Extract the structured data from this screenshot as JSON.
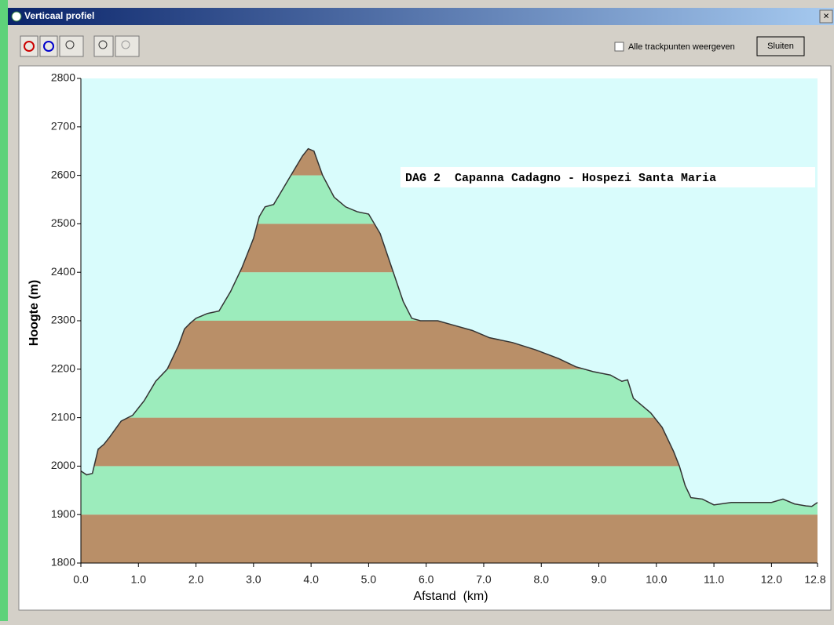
{
  "window": {
    "title": "Verticaal profiel",
    "checkbox_label": "Alle trackpunten weergeven",
    "button_label": "Sluiten"
  },
  "chart_data": {
    "type": "banded-area",
    "annotation": "DAG 2  Capanna Cadagno - Hospezi Santa Maria",
    "xlabel": "Afstand  (km)",
    "ylabel": "Hoogte (m)",
    "x": [
      0,
      0.1,
      0.2,
      0.3,
      0.4,
      0.5,
      0.7,
      0.9,
      1.1,
      1.3,
      1.5,
      1.7,
      1.8,
      1.9,
      2.0,
      2.2,
      2.4,
      2.6,
      2.8,
      2.9,
      3.0,
      3.1,
      3.2,
      3.35,
      3.5,
      3.7,
      3.85,
      3.95,
      4.05,
      4.2,
      4.4,
      4.6,
      4.8,
      5.0,
      5.2,
      5.4,
      5.6,
      5.75,
      5.9,
      6.2,
      6.5,
      6.8,
      7.1,
      7.5,
      7.9,
      8.3,
      8.6,
      8.9,
      9.2,
      9.4,
      9.5,
      9.6,
      9.9,
      10.1,
      10.3,
      10.4,
      10.5,
      10.6,
      10.8,
      11.0,
      11.3,
      11.6,
      12.0,
      12.2,
      12.4,
      12.6,
      12.7,
      12.8
    ],
    "values": [
      1990,
      1982,
      1985,
      2035,
      2045,
      2060,
      2093,
      2105,
      2135,
      2175,
      2200,
      2250,
      2283,
      2295,
      2305,
      2315,
      2320,
      2360,
      2410,
      2440,
      2470,
      2515,
      2535,
      2540,
      2570,
      2610,
      2640,
      2655,
      2650,
      2600,
      2555,
      2535,
      2525,
      2520,
      2480,
      2410,
      2340,
      2305,
      2300,
      2300,
      2290,
      2280,
      2265,
      2255,
      2240,
      2222,
      2205,
      2195,
      2188,
      2175,
      2178,
      2140,
      2110,
      2080,
      2030,
      2000,
      1960,
      1935,
      1932,
      1920,
      1925,
      1925,
      1925,
      1932,
      1922,
      1918,
      1917,
      1925
    ],
    "xlim": [
      0,
      12.8
    ],
    "xticks": [
      {
        "value": 0,
        "label": "0.0"
      },
      {
        "value": 1,
        "label": "1.0"
      },
      {
        "value": 2,
        "label": "2.0"
      },
      {
        "value": 3,
        "label": "3.0"
      },
      {
        "value": 4,
        "label": "4.0"
      },
      {
        "value": 5,
        "label": "5.0"
      },
      {
        "value": 6,
        "label": "6.0"
      },
      {
        "value": 7,
        "label": "7.0"
      },
      {
        "value": 8,
        "label": "8.0"
      },
      {
        "value": 9,
        "label": "9.0"
      },
      {
        "value": 10,
        "label": "10.0"
      },
      {
        "value": 11,
        "label": "11.0"
      },
      {
        "value": 12,
        "label": "12.0"
      },
      12.8
    ],
    "ylim": [
      1800,
      2800
    ],
    "yticks": [
      1800,
      1900,
      2000,
      2100,
      2200,
      2300,
      2400,
      2500,
      2600,
      2700,
      2800
    ],
    "band_colors": [
      "#b98f68",
      "#9cecbc"
    ],
    "line_color": "#333333",
    "background": "#d9fcfc"
  }
}
